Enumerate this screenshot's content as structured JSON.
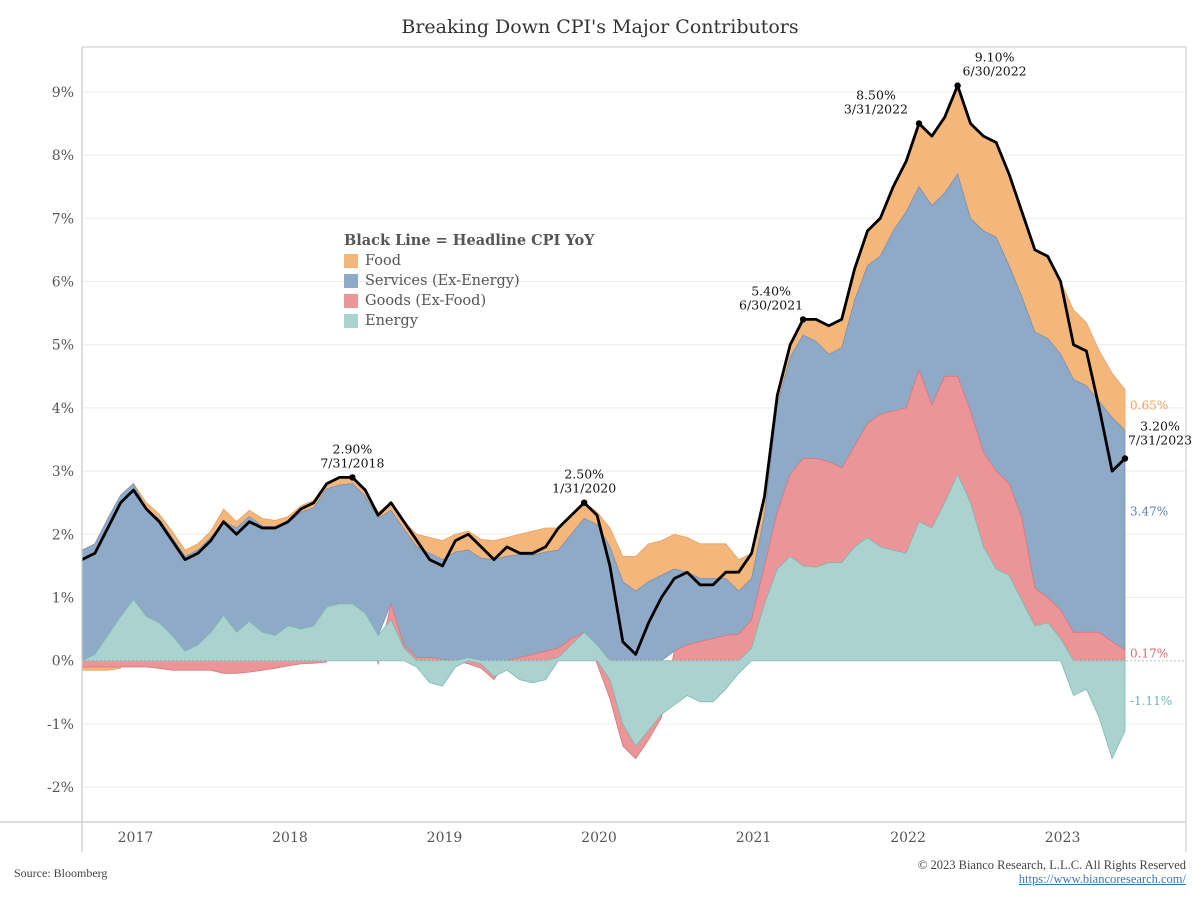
{
  "chart_data": {
    "type": "area",
    "title": "Breaking Down CPI's Major Contributors",
    "xlabel": "",
    "ylabel": "",
    "ylim": [
      -2.3,
      9.9
    ],
    "y_ticks": [
      "-2%",
      "-1%",
      "0%",
      "1%",
      "2%",
      "3%",
      "4%",
      "5%",
      "6%",
      "7%",
      "8%",
      "9%"
    ],
    "y_tick_values": [
      -2,
      -1,
      0,
      1,
      2,
      3,
      4,
      5,
      6,
      7,
      8,
      9
    ],
    "x_ticks": [
      "2017",
      "2018",
      "2019",
      "2020",
      "2021",
      "2022",
      "2023"
    ],
    "grid": true,
    "start_month": "2016-10",
    "end_month": "2023-07",
    "legend": {
      "title": "Black Line = Headline CPI YoY",
      "placement": "upper-left-center",
      "items": [
        {
          "name": "Food",
          "color": "#f4b77b"
        },
        {
          "name": "Services (Ex-Energy)",
          "color": "#8faac7"
        },
        {
          "name": "Goods (Ex-Food)",
          "color": "#eb9598"
        },
        {
          "name": "Energy",
          "color": "#aad3d0"
        }
      ]
    },
    "headline": {
      "name": "Headline CPI YoY",
      "color": "#000000",
      "values": [
        1.6,
        1.7,
        2.1,
        2.5,
        2.7,
        2.4,
        2.2,
        1.9,
        1.6,
        1.7,
        1.9,
        2.2,
        2.0,
        2.2,
        2.1,
        2.1,
        2.2,
        2.4,
        2.5,
        2.8,
        2.9,
        2.9,
        2.7,
        2.3,
        2.5,
        2.2,
        1.9,
        1.6,
        1.5,
        1.9,
        2.0,
        1.8,
        1.6,
        1.8,
        1.7,
        1.7,
        1.8,
        2.1,
        2.3,
        2.5,
        2.3,
        1.5,
        0.3,
        0.1,
        0.6,
        1.0,
        1.3,
        1.4,
        1.2,
        1.2,
        1.4,
        1.4,
        1.7,
        2.6,
        4.2,
        5.0,
        5.4,
        5.4,
        5.3,
        5.4,
        6.2,
        6.8,
        7.0,
        7.5,
        7.9,
        8.5,
        8.3,
        8.6,
        9.1,
        8.5,
        8.3,
        8.2,
        7.7,
        7.1,
        6.5,
        6.4,
        6.0,
        5.0,
        4.9,
        4.0,
        3.0,
        3.2
      ]
    },
    "series": [
      {
        "name": "Energy",
        "color": "#aad3d0",
        "values": [
          0.0,
          0.1,
          0.4,
          0.7,
          0.97,
          0.7,
          0.6,
          0.4,
          0.15,
          0.25,
          0.45,
          0.72,
          0.45,
          0.62,
          0.45,
          0.4,
          0.55,
          0.5,
          0.55,
          0.85,
          0.9,
          0.9,
          0.75,
          0.4,
          0.65,
          0.2,
          -0.1,
          -0.35,
          -0.4,
          -0.1,
          0.05,
          -0.05,
          -0.25,
          -0.15,
          -0.3,
          -0.35,
          -0.3,
          0.05,
          0.25,
          0.45,
          0.25,
          -0.3,
          -1.0,
          -1.35,
          -1.1,
          -0.85,
          -0.7,
          -0.55,
          -0.65,
          -0.65,
          -0.45,
          -0.2,
          0.2,
          0.9,
          1.45,
          1.65,
          1.5,
          1.48,
          1.55,
          1.55,
          1.8,
          1.95,
          1.8,
          1.75,
          1.7,
          2.2,
          2.1,
          2.5,
          2.95,
          2.5,
          1.8,
          1.45,
          1.35,
          0.95,
          0.55,
          0.6,
          0.35,
          -0.55,
          -0.45,
          -0.9,
          -1.55,
          -1.11
        ]
      },
      {
        "name": "Goods (Ex-Food)",
        "color": "#eb9598",
        "values": [
          -0.1,
          -0.1,
          -0.1,
          -0.1,
          -0.1,
          -0.1,
          -0.12,
          -0.15,
          -0.15,
          -0.15,
          -0.15,
          -0.2,
          -0.2,
          -0.18,
          -0.15,
          -0.12,
          -0.08,
          -0.05,
          -0.04,
          -0.02,
          0.0,
          0.0,
          0.0,
          -0.05,
          0.25,
          0.05,
          0.05,
          0.05,
          0.02,
          0.0,
          -0.05,
          -0.07,
          -0.05,
          0.0,
          0.05,
          0.1,
          0.15,
          0.15,
          0.1,
          0.0,
          -0.05,
          -0.3,
          -0.35,
          -0.2,
          -0.15,
          -0.05,
          0.15,
          0.25,
          0.3,
          0.35,
          0.4,
          0.42,
          0.45,
          0.6,
          0.9,
          1.3,
          1.7,
          1.72,
          1.6,
          1.5,
          1.6,
          1.8,
          2.1,
          2.2,
          2.3,
          2.4,
          1.95,
          2.0,
          1.55,
          1.45,
          1.5,
          1.55,
          1.45,
          1.3,
          0.6,
          0.4,
          0.45,
          0.45,
          0.45,
          0.45,
          0.3,
          0.17
        ]
      },
      {
        "name": "Services (Ex-Energy)",
        "color": "#8faac7",
        "values": [
          1.75,
          1.75,
          1.85,
          1.92,
          1.83,
          1.7,
          1.64,
          1.55,
          1.5,
          1.5,
          1.5,
          1.48,
          1.65,
          1.66,
          1.68,
          1.72,
          1.63,
          1.85,
          1.87,
          1.87,
          1.88,
          1.9,
          1.85,
          1.85,
          1.48,
          1.83,
          1.75,
          1.65,
          1.58,
          1.72,
          1.7,
          1.62,
          1.6,
          1.65,
          1.63,
          1.57,
          1.57,
          1.55,
          1.65,
          1.8,
          1.9,
          1.8,
          1.25,
          1.1,
          1.25,
          1.35,
          1.3,
          1.15,
          1.0,
          0.95,
          0.9,
          0.68,
          0.65,
          0.8,
          1.7,
          1.85,
          1.95,
          1.85,
          1.7,
          1.9,
          2.3,
          2.5,
          2.5,
          2.85,
          3.1,
          2.9,
          3.15,
          2.9,
          3.2,
          3.05,
          3.5,
          3.7,
          3.45,
          3.5,
          4.05,
          4.1,
          4.05,
          4.0,
          3.9,
          3.65,
          3.55,
          3.47
        ]
      },
      {
        "name": "Food",
        "color": "#f4b77b",
        "values": [
          -0.05,
          -0.05,
          -0.05,
          -0.02,
          0.0,
          0.1,
          0.08,
          0.1,
          0.1,
          0.1,
          0.1,
          0.2,
          0.1,
          0.1,
          0.12,
          0.1,
          0.1,
          0.1,
          0.12,
          0.1,
          0.12,
          0.1,
          0.1,
          0.1,
          0.12,
          0.12,
          0.2,
          0.25,
          0.3,
          0.28,
          0.3,
          0.3,
          0.3,
          0.3,
          0.32,
          0.38,
          0.38,
          0.35,
          0.3,
          0.25,
          0.2,
          0.3,
          0.4,
          0.55,
          0.6,
          0.55,
          0.55,
          0.55,
          0.55,
          0.55,
          0.55,
          0.5,
          0.4,
          0.3,
          0.15,
          0.2,
          0.25,
          0.35,
          0.45,
          0.45,
          0.5,
          0.55,
          0.6,
          0.7,
          0.8,
          1.0,
          1.1,
          1.2,
          1.4,
          1.5,
          1.5,
          1.5,
          1.45,
          1.35,
          1.3,
          1.3,
          1.15,
          1.1,
          1.0,
          0.8,
          0.7,
          0.65
        ]
      }
    ],
    "annotations": [
      {
        "index": 21,
        "value_label": "2.90%",
        "date_label": "7/31/2018"
      },
      {
        "index": 39,
        "value_label": "2.50%",
        "date_label": "1/31/2020"
      },
      {
        "index": 56,
        "value_label": "5.40%",
        "date_label": "6/30/2021"
      },
      {
        "index": 65,
        "value_label": "8.50%",
        "date_label": "3/31/2022"
      },
      {
        "index": 68,
        "value_label": "9.10%",
        "date_label": "6/30/2022"
      },
      {
        "index": 81,
        "value_label": "3.20%",
        "date_label": "7/31/2023"
      }
    ],
    "end_labels": [
      {
        "series": "Food",
        "text": "0.65%",
        "color": "#f0a05a"
      },
      {
        "series": "Services (Ex-Energy)",
        "text": "3.47%",
        "color": "#5b7fb0"
      },
      {
        "series": "Goods (Ex-Food)",
        "text": "0.17%",
        "color": "#e0686c"
      },
      {
        "series": "Energy",
        "text": "-1.11%",
        "color": "#6fb5b0"
      }
    ]
  },
  "footer": {
    "source": "Source: Bloomberg",
    "copyright": "© 2023 Bianco Research, L.L.C. All Rights Reserved",
    "url": "https://www.biancoresearch.com/"
  }
}
